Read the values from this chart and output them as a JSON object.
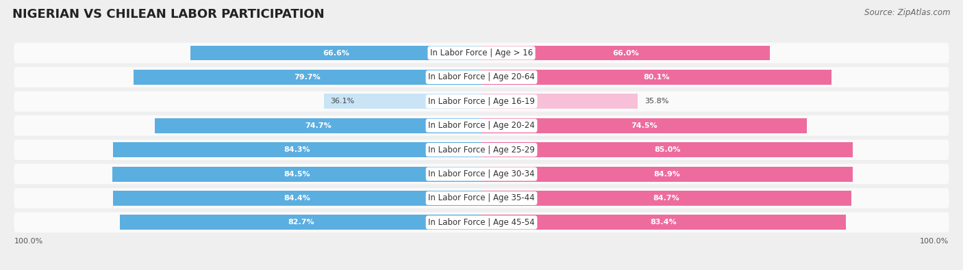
{
  "title": "NIGERIAN VS CHILEAN LABOR PARTICIPATION",
  "source": "Source: ZipAtlas.com",
  "categories": [
    "In Labor Force | Age > 16",
    "In Labor Force | Age 20-64",
    "In Labor Force | Age 16-19",
    "In Labor Force | Age 20-24",
    "In Labor Force | Age 25-29",
    "In Labor Force | Age 30-34",
    "In Labor Force | Age 35-44",
    "In Labor Force | Age 45-54"
  ],
  "nigerian_values": [
    66.6,
    79.7,
    36.1,
    74.7,
    84.3,
    84.5,
    84.4,
    82.7
  ],
  "chilean_values": [
    66.0,
    80.1,
    35.8,
    74.5,
    85.0,
    84.9,
    84.7,
    83.4
  ],
  "nigerian_color": "#5BAEE0",
  "nigerian_color_light": "#C8E4F5",
  "chilean_color": "#EE6B9E",
  "chilean_color_light": "#F7C0D8",
  "bg_color": "#EFEFEF",
  "row_bg_color": "#FAFAFA",
  "title_fontsize": 13,
  "label_fontsize": 8.5,
  "value_fontsize": 8,
  "axis_label_fontsize": 8,
  "legend_fontsize": 9
}
